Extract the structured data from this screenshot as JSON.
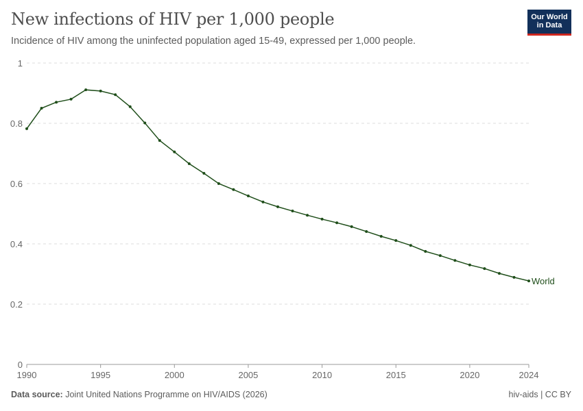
{
  "title": "New infections of HIV per 1,000 people",
  "subtitle": "Incidence of HIV among the uninfected population aged 15-49, expressed per 1,000 people.",
  "logo": "Our World in Data",
  "logo_line1": "Our World",
  "logo_line2": "in Data",
  "footer": {
    "source_label": "Data source:",
    "source": "Joint United Nations Programme on HIV/AIDS (2026)",
    "right": "hiv-aids | CC BY"
  },
  "chart_data": {
    "type": "line",
    "title": "New infections of HIV per 1,000 people",
    "xlim": [
      1990,
      2024
    ],
    "ylim": [
      0,
      1
    ],
    "yticks": [
      0,
      0.2,
      0.4,
      0.6,
      0.8,
      1
    ],
    "ytick_labels": [
      "0",
      "0.2",
      "0.4",
      "0.6",
      "0.8",
      "1"
    ],
    "xticks": [
      1990,
      1995,
      2000,
      2005,
      2010,
      2015,
      2020,
      2024
    ],
    "xtick_labels": [
      "1990",
      "1995",
      "2000",
      "2005",
      "2010",
      "2015",
      "2020",
      "2024"
    ],
    "grid": true,
    "line_color": "#1f4e1a",
    "series": [
      {
        "name": "World",
        "x": [
          1990,
          1991,
          1992,
          1993,
          1994,
          1995,
          1996,
          1997,
          1998,
          1999,
          2000,
          2001,
          2002,
          2003,
          2004,
          2005,
          2006,
          2007,
          2008,
          2009,
          2010,
          2011,
          2012,
          2013,
          2014,
          2015,
          2016,
          2017,
          2018,
          2019,
          2020,
          2021,
          2022,
          2023,
          2024
        ],
        "y": [
          0.782,
          0.85,
          0.87,
          0.88,
          0.911,
          0.907,
          0.895,
          0.855,
          0.801,
          0.743,
          0.705,
          0.666,
          0.634,
          0.6,
          0.58,
          0.559,
          0.539,
          0.523,
          0.509,
          0.495,
          0.482,
          0.47,
          0.457,
          0.441,
          0.425,
          0.411,
          0.395,
          0.375,
          0.361,
          0.345,
          0.33,
          0.318,
          0.302,
          0.289,
          0.277
        ]
      }
    ]
  }
}
